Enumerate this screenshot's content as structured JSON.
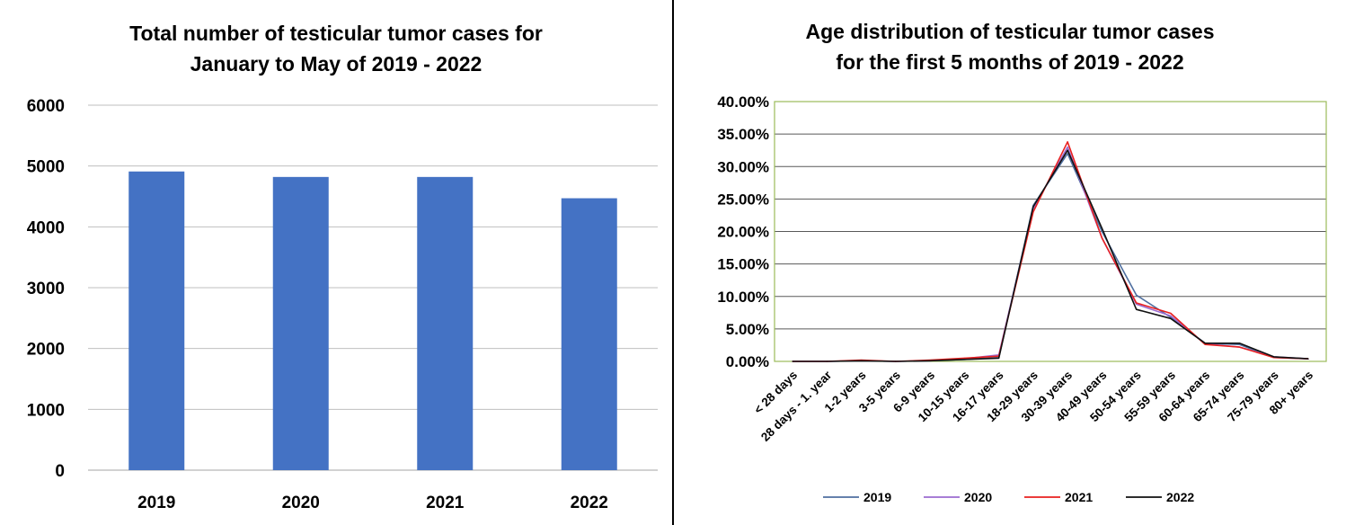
{
  "chart_data": [
    {
      "type": "bar",
      "title": [
        "Total number of testicular tumor cases for",
        "January to May of 2019 - 2022"
      ],
      "categories": [
        "2019",
        "2020",
        "2021",
        "2022"
      ],
      "values": [
        4910,
        4820,
        4820,
        4470
      ],
      "ylim": [
        0,
        6000
      ],
      "yticks": [
        "0",
        "1000",
        "2000",
        "3000",
        "4000",
        "5000",
        "6000"
      ],
      "grid": true,
      "bar_color": "#4472C4",
      "grid_color": "#BFBFBF"
    },
    {
      "type": "line",
      "title": [
        "Age distribution of testicular tumor cases",
        "for the first 5 months of 2019 - 2022"
      ],
      "categories": [
        "< 28 days",
        "28 days - 1. year",
        "1-2 years",
        "3-5 years",
        "6-9 years",
        "10-15 years",
        "16-17 years",
        "18-29 years",
        "30-39 years",
        "40-49 years",
        "50-54 years",
        "55-59 years",
        "60-64 years",
        "65-74 years",
        "75-79 years",
        "80+ years"
      ],
      "ylim": [
        0,
        0.4
      ],
      "yticks": [
        "0.00%",
        "5.00%",
        "10.00%",
        "15.00%",
        "20.00%",
        "25.00%",
        "30.00%",
        "35.00%",
        "40.00%"
      ],
      "grid": true,
      "legend": "bottom",
      "plot_border_color": "#9BBB59",
      "series": [
        {
          "name": "2019",
          "color": "#4F6FA0",
          "values": [
            0.0,
            0.0,
            0.001,
            0.0,
            0.001,
            0.003,
            0.006,
            0.24,
            0.32,
            0.2,
            0.102,
            0.068,
            0.028,
            0.026,
            0.006,
            0.004
          ]
        },
        {
          "name": "2020",
          "color": "#9B6BD0",
          "values": [
            0.0,
            0.0,
            0.001,
            0.0,
            0.001,
            0.004,
            0.01,
            0.235,
            0.33,
            0.19,
            0.088,
            0.07,
            0.027,
            0.022,
            0.007,
            0.004
          ]
        },
        {
          "name": "2021",
          "color": "#E8201F",
          "values": [
            0.0,
            0.0,
            0.002,
            0.0,
            0.002,
            0.005,
            0.008,
            0.23,
            0.338,
            0.19,
            0.09,
            0.074,
            0.026,
            0.022,
            0.006,
            0.004
          ]
        },
        {
          "name": "2022",
          "color": "#111111",
          "values": [
            0.0,
            0.0,
            0.001,
            0.0,
            0.001,
            0.003,
            0.005,
            0.238,
            0.325,
            0.205,
            0.08,
            0.066,
            0.028,
            0.028,
            0.007,
            0.004
          ]
        }
      ]
    }
  ]
}
